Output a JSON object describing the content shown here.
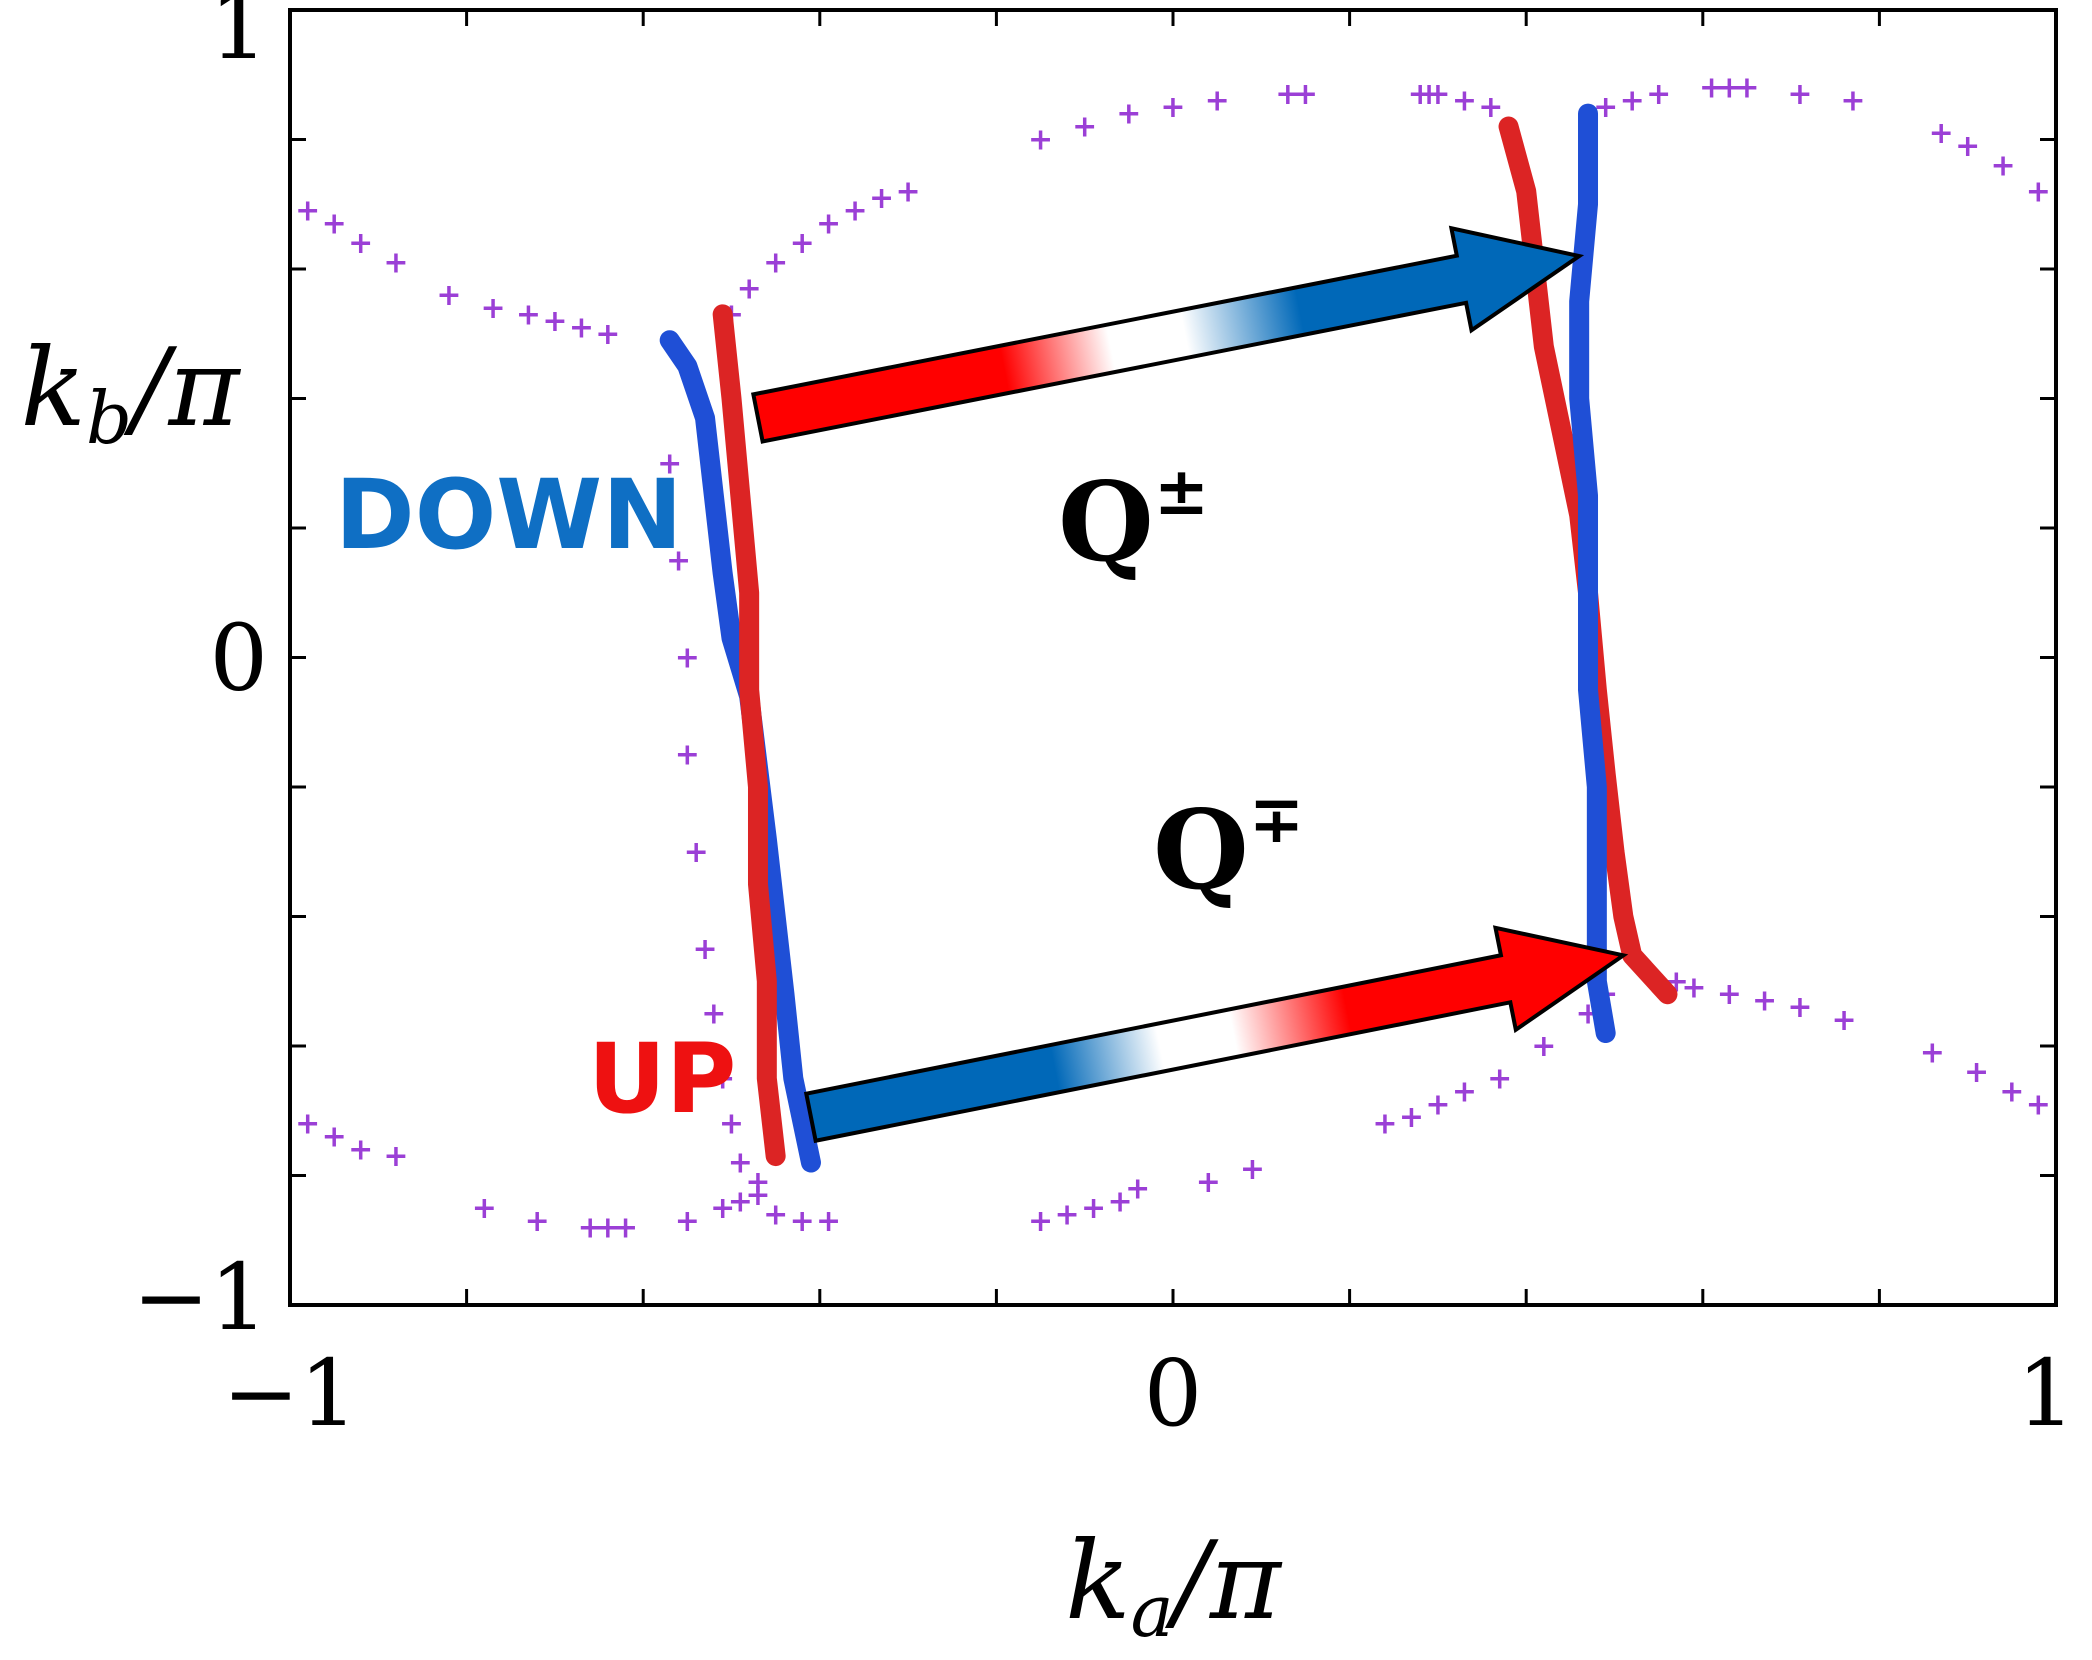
{
  "chart_data": {
    "type": "scatter",
    "title": "",
    "xlabel": "k_a/π",
    "xlabel_parts": {
      "base": "k",
      "sub": "a",
      "tail": "/π"
    },
    "ylabel": "k_b/π",
    "ylabel_parts": {
      "base": "k",
      "sub": "b",
      "tail": "/π"
    },
    "xlim": [
      -1,
      1
    ],
    "ylim": [
      -1,
      1
    ],
    "x_ticks": [
      -1,
      0,
      1
    ],
    "x_tick_labels": [
      "−1",
      "0",
      "1"
    ],
    "y_ticks": [
      -1,
      0,
      1
    ],
    "y_tick_labels": [
      "−1",
      "0",
      "1"
    ],
    "grid": false,
    "colors": {
      "down": "#1f4fd6",
      "up": "#dc2424",
      "markers": "#9b3fd6",
      "arrow_red": "#ff0000",
      "arrow_blue": "#0068b8",
      "down_text": "#0f6fc4",
      "up_text": "#ee1111"
    },
    "series": [
      {
        "key": "fermi_surface",
        "marker": "+",
        "points": [
          [
            -0.98,
            0.69
          ],
          [
            -0.95,
            0.67
          ],
          [
            -0.92,
            0.64
          ],
          [
            -0.88,
            0.61
          ],
          [
            -0.82,
            0.56
          ],
          [
            -0.77,
            0.54
          ],
          [
            -0.73,
            0.53
          ],
          [
            -0.7,
            0.52
          ],
          [
            -0.67,
            0.51
          ],
          [
            -0.64,
            0.5
          ],
          [
            -0.57,
            0.3
          ],
          [
            -0.56,
            0.15
          ],
          [
            -0.55,
            0.0
          ],
          [
            -0.55,
            -0.15
          ],
          [
            -0.54,
            -0.3
          ],
          [
            -0.53,
            -0.45
          ],
          [
            -0.52,
            -0.55
          ],
          [
            -0.51,
            -0.65
          ],
          [
            -0.5,
            -0.72
          ],
          [
            -0.49,
            -0.78
          ],
          [
            -0.5,
            0.53
          ],
          [
            -0.48,
            0.57
          ],
          [
            -0.45,
            0.61
          ],
          [
            -0.42,
            0.64
          ],
          [
            -0.39,
            0.67
          ],
          [
            -0.36,
            0.69
          ],
          [
            -0.33,
            0.71
          ],
          [
            -0.3,
            0.72
          ],
          [
            -0.98,
            -0.72
          ],
          [
            -0.95,
            -0.74
          ],
          [
            -0.92,
            -0.76
          ],
          [
            -0.88,
            -0.77
          ],
          [
            -0.78,
            -0.85
          ],
          [
            -0.72,
            -0.87
          ],
          [
            -0.66,
            -0.88
          ],
          [
            -0.64,
            -0.88
          ],
          [
            -0.62,
            -0.88
          ],
          [
            -0.55,
            -0.87
          ],
          [
            -0.51,
            -0.85
          ],
          [
            -0.49,
            -0.84
          ],
          [
            -0.47,
            -0.81
          ],
          [
            -0.47,
            -0.83
          ],
          [
            -0.45,
            -0.86
          ],
          [
            -0.42,
            -0.87
          ],
          [
            -0.39,
            -0.87
          ],
          [
            -0.15,
            0.8
          ],
          [
            -0.1,
            0.82
          ],
          [
            -0.05,
            0.84
          ],
          [
            0.0,
            0.85
          ],
          [
            0.05,
            0.86
          ],
          [
            0.13,
            0.87
          ],
          [
            0.15,
            0.87
          ],
          [
            0.28,
            0.87
          ],
          [
            0.29,
            0.87
          ],
          [
            0.3,
            0.87
          ],
          [
            0.33,
            0.86
          ],
          [
            0.36,
            0.85
          ],
          [
            0.49,
            0.85
          ],
          [
            0.52,
            0.86
          ],
          [
            0.55,
            0.87
          ],
          [
            0.61,
            0.88
          ],
          [
            0.63,
            0.88
          ],
          [
            0.65,
            0.88
          ],
          [
            0.71,
            0.87
          ],
          [
            0.77,
            0.86
          ],
          [
            0.87,
            0.81
          ],
          [
            0.9,
            0.79
          ],
          [
            0.94,
            0.76
          ],
          [
            0.98,
            0.72
          ],
          [
            0.57,
            -0.5
          ],
          [
            0.59,
            -0.51
          ],
          [
            0.63,
            -0.52
          ],
          [
            0.67,
            -0.53
          ],
          [
            0.71,
            -0.54
          ],
          [
            0.76,
            -0.56
          ],
          [
            0.86,
            -0.61
          ],
          [
            0.91,
            -0.64
          ],
          [
            0.95,
            -0.67
          ],
          [
            0.98,
            -0.69
          ],
          [
            0.24,
            -0.72
          ],
          [
            0.27,
            -0.71
          ],
          [
            0.3,
            -0.69
          ],
          [
            0.33,
            -0.67
          ],
          [
            0.37,
            -0.65
          ],
          [
            0.42,
            -0.6
          ],
          [
            0.47,
            -0.55
          ],
          [
            0.49,
            -0.52
          ],
          [
            -0.15,
            -0.87
          ],
          [
            -0.12,
            -0.86
          ],
          [
            -0.09,
            -0.85
          ],
          [
            -0.06,
            -0.84
          ],
          [
            -0.04,
            -0.82
          ],
          [
            0.04,
            -0.81
          ],
          [
            0.09,
            -0.79
          ]
        ]
      },
      {
        "key": "down_band",
        "name": "DOWN",
        "points": [
          [
            -0.57,
            0.49
          ],
          [
            -0.55,
            0.45
          ],
          [
            -0.53,
            0.37
          ],
          [
            -0.52,
            0.25
          ],
          [
            -0.51,
            0.13
          ],
          [
            -0.5,
            0.03
          ],
          [
            -0.48,
            -0.06
          ],
          [
            -0.47,
            -0.17
          ],
          [
            -0.46,
            -0.28
          ],
          [
            -0.45,
            -0.4
          ],
          [
            -0.44,
            -0.52
          ],
          [
            -0.43,
            -0.65
          ],
          [
            -0.41,
            -0.78
          ]
        ]
      },
      {
        "key": "up_band",
        "name": "UP",
        "points": [
          [
            -0.51,
            0.53
          ],
          [
            -0.5,
            0.4
          ],
          [
            -0.49,
            0.25
          ],
          [
            -0.48,
            0.1
          ],
          [
            -0.48,
            -0.05
          ],
          [
            -0.47,
            -0.2
          ],
          [
            -0.47,
            -0.35
          ],
          [
            -0.46,
            -0.5
          ],
          [
            -0.46,
            -0.65
          ],
          [
            -0.45,
            -0.77
          ]
        ]
      },
      {
        "key": "down_band_right",
        "name": "DOWN",
        "points": [
          [
            0.47,
            0.84
          ],
          [
            0.47,
            0.7
          ],
          [
            0.46,
            0.55
          ],
          [
            0.46,
            0.4
          ],
          [
            0.47,
            0.25
          ],
          [
            0.47,
            0.1
          ],
          [
            0.47,
            -0.05
          ],
          [
            0.48,
            -0.2
          ],
          [
            0.48,
            -0.35
          ],
          [
            0.48,
            -0.5
          ],
          [
            0.49,
            -0.58
          ]
        ]
      },
      {
        "key": "up_band_right",
        "name": "UP",
        "points": [
          [
            0.38,
            0.82
          ],
          [
            0.4,
            0.72
          ],
          [
            0.41,
            0.6
          ],
          [
            0.42,
            0.48
          ],
          [
            0.44,
            0.35
          ],
          [
            0.46,
            0.22
          ],
          [
            0.47,
            0.1
          ],
          [
            0.48,
            -0.05
          ],
          [
            0.49,
            -0.18
          ],
          [
            0.5,
            -0.3
          ],
          [
            0.51,
            -0.4
          ],
          [
            0.52,
            -0.46
          ],
          [
            0.56,
            -0.52
          ]
        ]
      }
    ],
    "annotations": {
      "q_pm": {
        "base": "Q",
        "sup": "±",
        "from": [
          -0.47,
          0.37
        ],
        "to": [
          0.46,
          0.62
        ]
      },
      "q_mp": {
        "base": "Q",
        "sup": "∓",
        "from": [
          -0.41,
          -0.71
        ],
        "to": [
          0.51,
          -0.46
        ]
      },
      "down_text": "DOWN",
      "up_text": "UP"
    }
  }
}
